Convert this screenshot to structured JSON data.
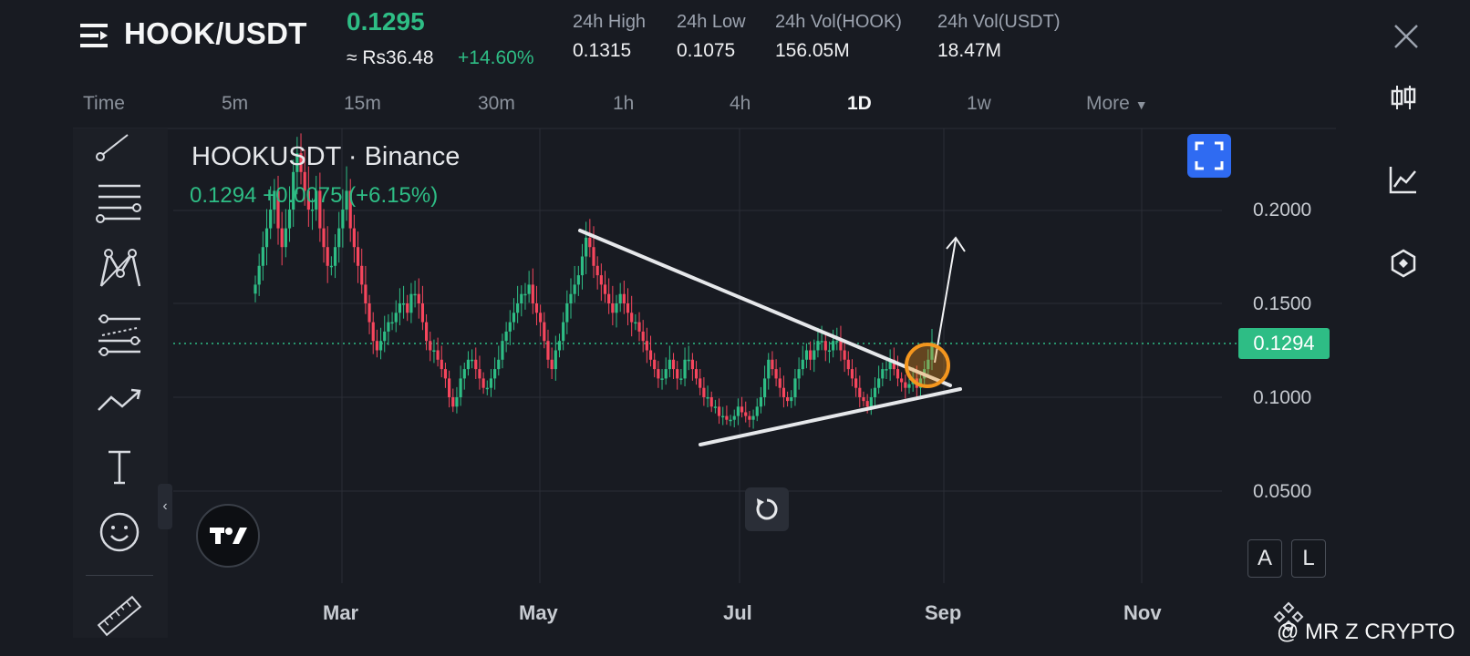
{
  "header": {
    "pair": "HOOK/USDT",
    "last_price": "0.1295",
    "fiat_price": "≈ Rs36.48",
    "change_pct": "+14.60%",
    "stats": [
      {
        "label": "24h High",
        "value": "0.1315"
      },
      {
        "label": "24h Low",
        "value": "0.1075"
      },
      {
        "label": "24h Vol(HOOK)",
        "value": "156.05M"
      },
      {
        "label": "24h Vol(USDT)",
        "value": "18.47M"
      }
    ]
  },
  "timeframes": [
    {
      "label": "Time",
      "active": false
    },
    {
      "label": "5m",
      "active": false
    },
    {
      "label": "15m",
      "active": false
    },
    {
      "label": "30m",
      "active": false
    },
    {
      "label": "1h",
      "active": false
    },
    {
      "label": "4h",
      "active": false
    },
    {
      "label": "1D",
      "active": true
    },
    {
      "label": "1w",
      "active": false
    },
    {
      "label": "More",
      "active": false
    }
  ],
  "right_rail": [
    "candlestick-icon",
    "line-chart-icon",
    "depth-icon"
  ],
  "toolbar": [
    "trend-line-icon",
    "horizontal-lines-icon",
    "pattern-icon",
    "channel-icon",
    "path-arrow-icon",
    "text-icon",
    "emoji-icon",
    "ruler-icon"
  ],
  "chart": {
    "symbol_title": "HOOKUSDT · Binance",
    "symbol_quote": "0.1294  +0.0075 (+6.15%)",
    "current_price": "0.1294",
    "price_ticks": [
      "0.2000",
      "0.1500",
      "0.1000",
      "0.0500"
    ],
    "date_ticks": [
      "Mar",
      "May",
      "Jul",
      "Sep",
      "Nov"
    ],
    "scale_buttons": [
      "A",
      "L"
    ]
  },
  "chart_data": {
    "type": "candlestick",
    "x_axis": [
      "Mar",
      "May",
      "Jul",
      "Sep",
      "Nov"
    ],
    "y_ticks": [
      0.2,
      0.15,
      0.1,
      0.05
    ],
    "current_price": 0.1294,
    "trendlines": [
      {
        "from": {
          "date": "May 22",
          "price": 0.189
        },
        "to": {
          "date": "Aug 31",
          "price": 0.107
        }
      },
      {
        "from": {
          "date": "Jun 20",
          "price": 0.075
        },
        "to": {
          "date": "Sep 3",
          "price": 0.105
        }
      }
    ],
    "closes": [
      0.16,
      0.17,
      0.18,
      0.19,
      0.2,
      0.21,
      0.19,
      0.18,
      0.19,
      0.2,
      0.22,
      0.23,
      0.22,
      0.21,
      0.2,
      0.2,
      0.21,
      0.19,
      0.18,
      0.17,
      0.17,
      0.18,
      0.19,
      0.2,
      0.21,
      0.19,
      0.18,
      0.17,
      0.16,
      0.15,
      0.14,
      0.13,
      0.125,
      0.13,
      0.135,
      0.14,
      0.14,
      0.145,
      0.15,
      0.15,
      0.145,
      0.155,
      0.155,
      0.15,
      0.14,
      0.13,
      0.125,
      0.125,
      0.12,
      0.115,
      0.11,
      0.1,
      0.095,
      0.1,
      0.11,
      0.115,
      0.12,
      0.12,
      0.115,
      0.11,
      0.105,
      0.105,
      0.11,
      0.115,
      0.12,
      0.13,
      0.135,
      0.14,
      0.145,
      0.15,
      0.155,
      0.155,
      0.16,
      0.15,
      0.145,
      0.14,
      0.13,
      0.12,
      0.115,
      0.125,
      0.13,
      0.14,
      0.15,
      0.155,
      0.16,
      0.165,
      0.175,
      0.185,
      0.18,
      0.17,
      0.165,
      0.16,
      0.155,
      0.15,
      0.145,
      0.15,
      0.155,
      0.15,
      0.145,
      0.14,
      0.14,
      0.135,
      0.13,
      0.125,
      0.12,
      0.115,
      0.11,
      0.11,
      0.115,
      0.12,
      0.115,
      0.11,
      0.11,
      0.12,
      0.12,
      0.115,
      0.11,
      0.105,
      0.1,
      0.1,
      0.095,
      0.095,
      0.09,
      0.09,
      0.088,
      0.088,
      0.09,
      0.095,
      0.092,
      0.09,
      0.088,
      0.09,
      0.095,
      0.1,
      0.11,
      0.12,
      0.115,
      0.11,
      0.105,
      0.1,
      0.098,
      0.1,
      0.11,
      0.115,
      0.12,
      0.125,
      0.12,
      0.125,
      0.13,
      0.13,
      0.125,
      0.125,
      0.13,
      0.13,
      0.125,
      0.12,
      0.115,
      0.11,
      0.105,
      0.1,
      0.098,
      0.095,
      0.1,
      0.105,
      0.11,
      0.115,
      0.115,
      0.12,
      0.115,
      0.11,
      0.108,
      0.105,
      0.107,
      0.11,
      0.105,
      0.11,
      0.115,
      0.12,
      0.1294
    ]
  }
}
